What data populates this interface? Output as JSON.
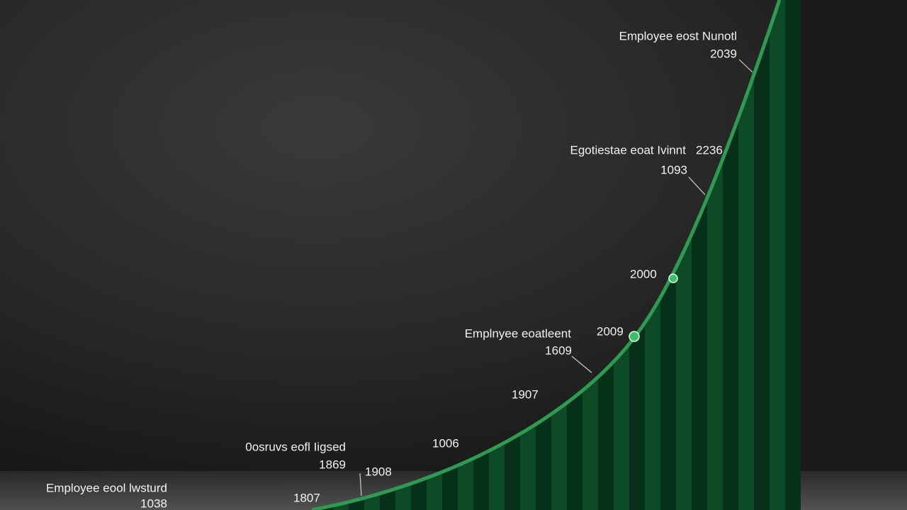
{
  "annotations": [
    {
      "label": "Employee eost Nunotl",
      "value": "2039"
    },
    {
      "label": "Egotiestae eoat Ivinnt",
      "value": "2236",
      "sub": "1093"
    },
    {
      "value": "2000"
    },
    {
      "label": "Emplnyee eoatleent",
      "value": "2009",
      "sub": "1609"
    },
    {
      "value": "1907"
    },
    {
      "value": "1006"
    },
    {
      "label": "0osruvs eofl Iigsed",
      "value": "1869",
      "sub": "1908"
    },
    {
      "label": "Employee eool lwsturd",
      "value": "1038"
    },
    {
      "value": "1807"
    }
  ]
}
